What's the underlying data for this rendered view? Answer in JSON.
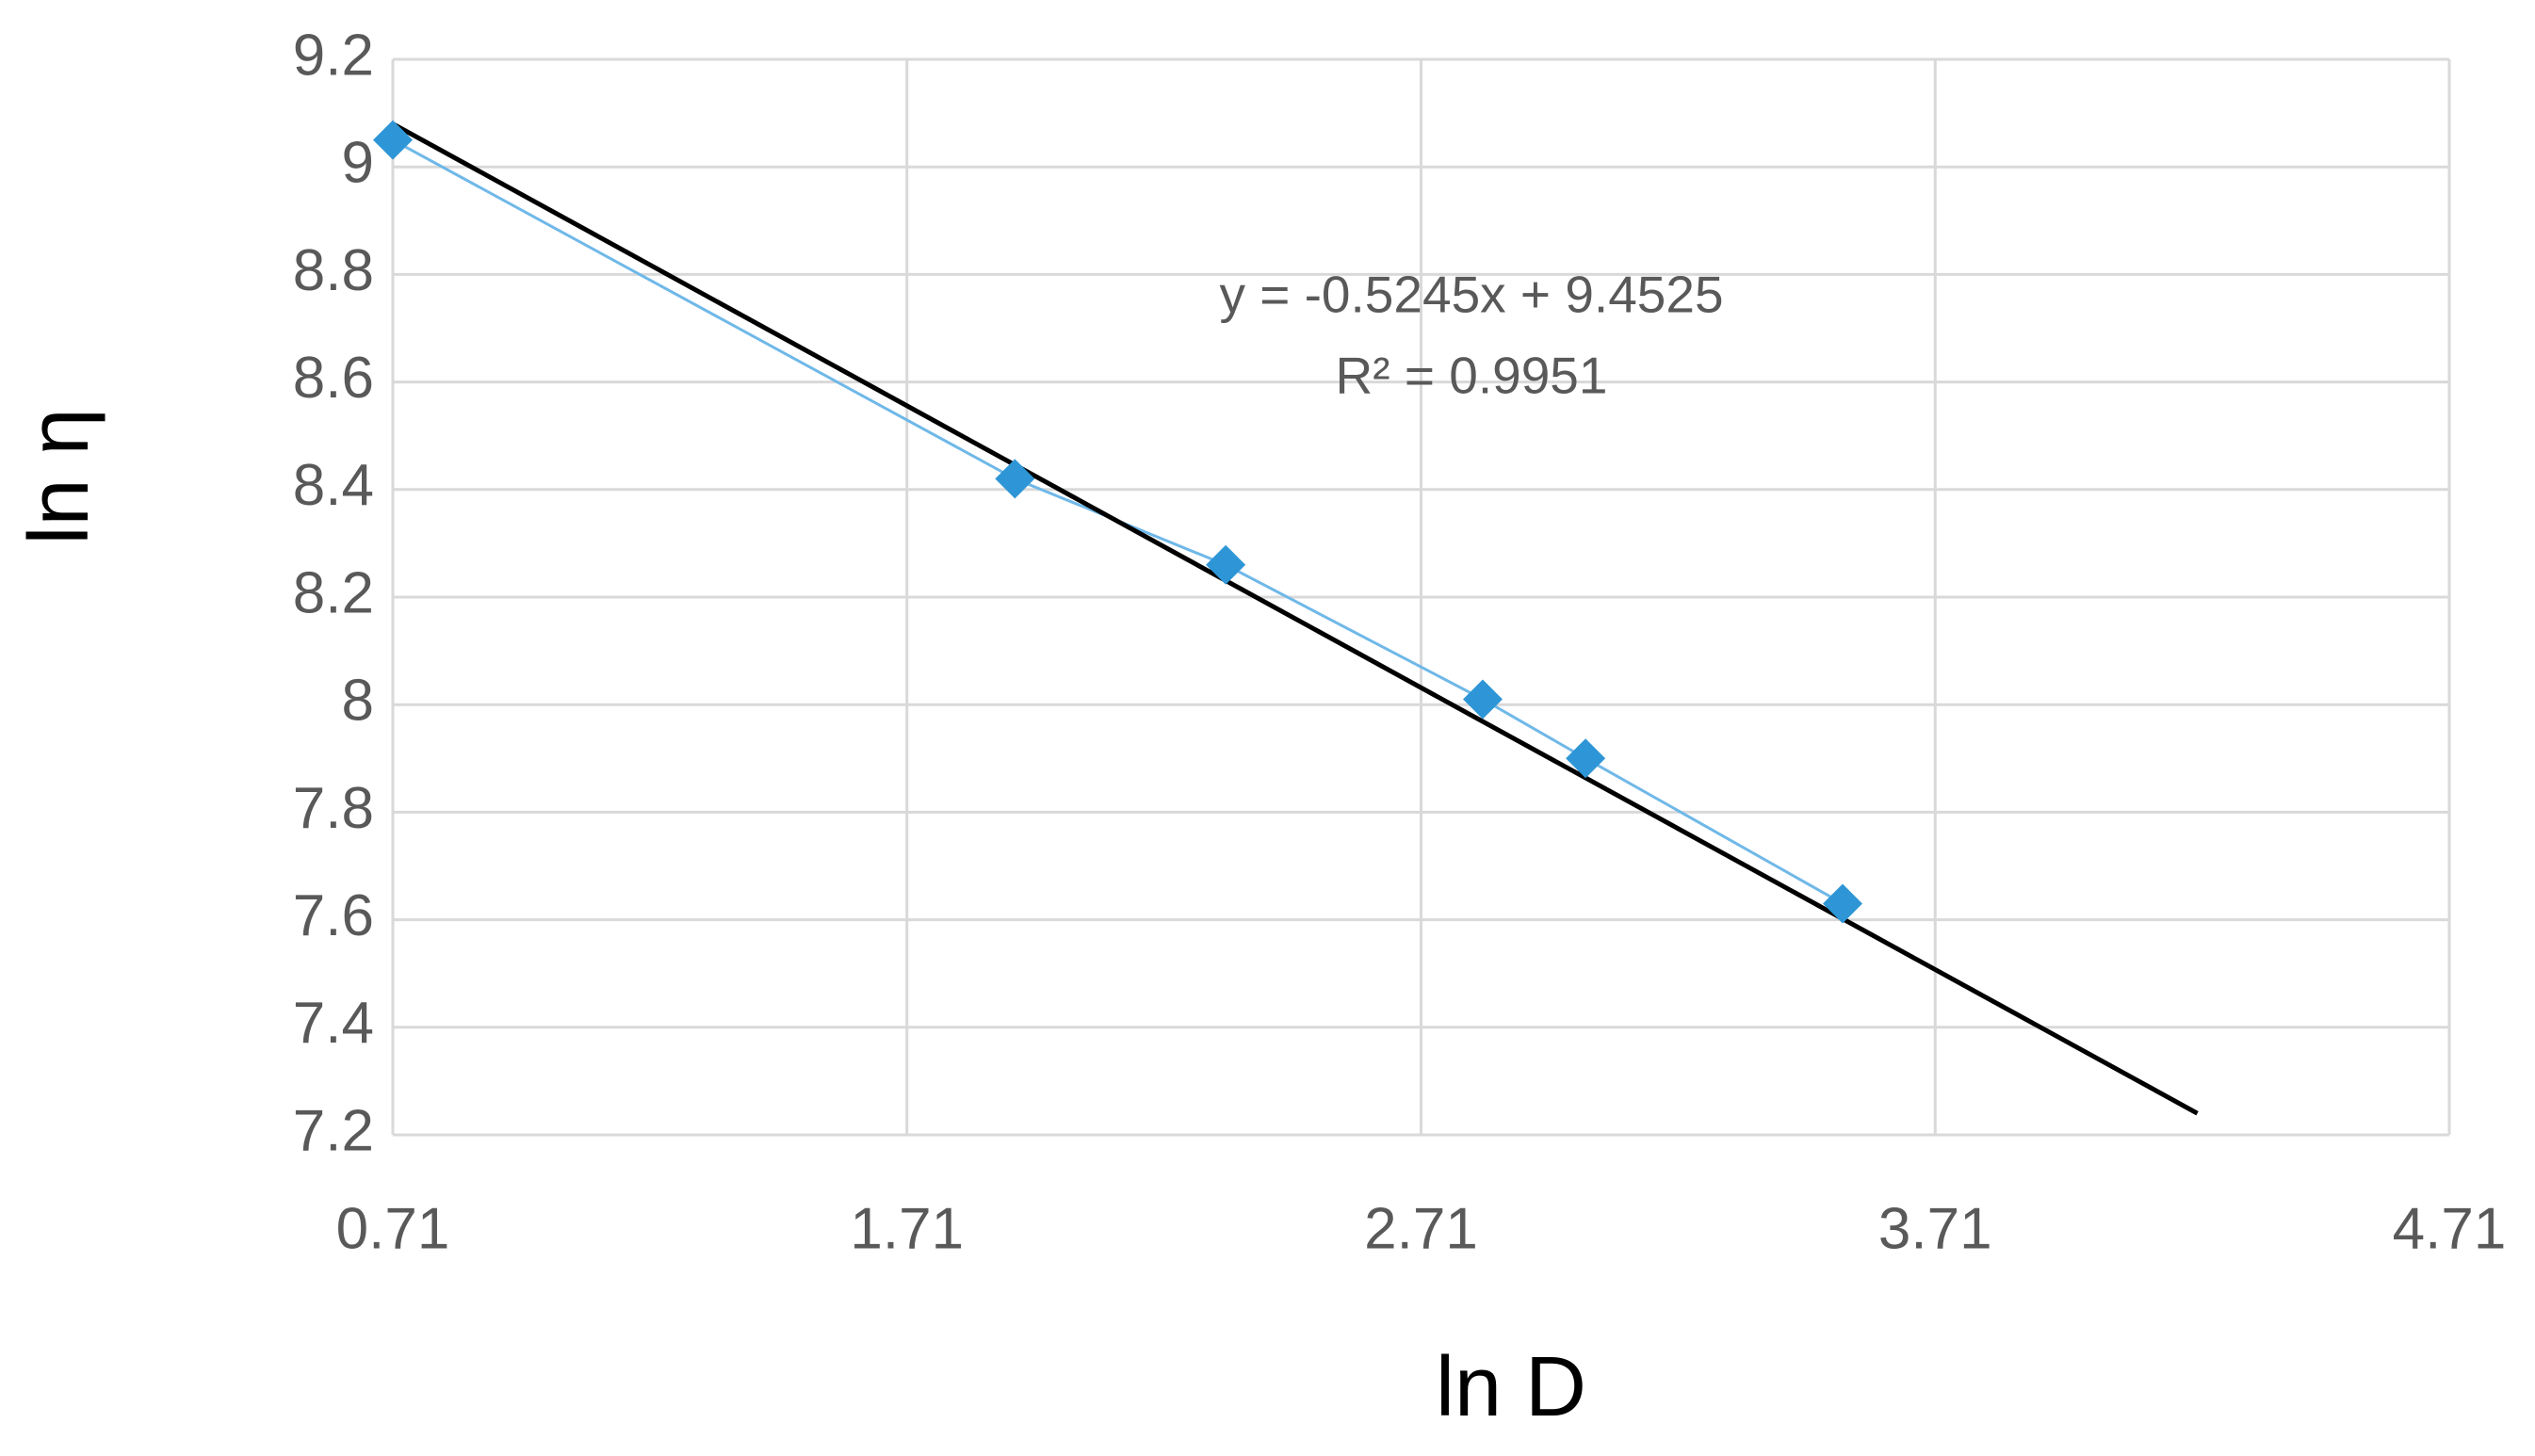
{
  "chart_data": {
    "type": "scatter",
    "x_label": "ln D",
    "y_label": "ln η",
    "xlim": [
      0.71,
      4.71
    ],
    "xticks": [
      0.71,
      1.71,
      2.71,
      3.71,
      4.71
    ],
    "ylim": [
      7.2,
      9.2
    ],
    "yticks": [
      7.2,
      7.4,
      7.6,
      7.8,
      8,
      8.2,
      8.4,
      8.6,
      8.8,
      9,
      9.2
    ],
    "grid": true,
    "series": [
      {
        "color": "#2e96d6",
        "line_color": "#6fb8e8",
        "x": [
          0.71,
          1.92,
          2.33,
          2.83,
          3.03,
          3.53
        ],
        "values": [
          9.05,
          8.42,
          8.26,
          8.01,
          7.9,
          7.63
        ]
      }
    ],
    "trendline": {
      "color": "#000000",
      "x": [
        0.71,
        4.22
      ],
      "values": [
        9.08,
        7.24
      ]
    },
    "annotations": [
      "y = -0.5245x + 9.4525",
      "R² = 0.9951"
    ]
  }
}
